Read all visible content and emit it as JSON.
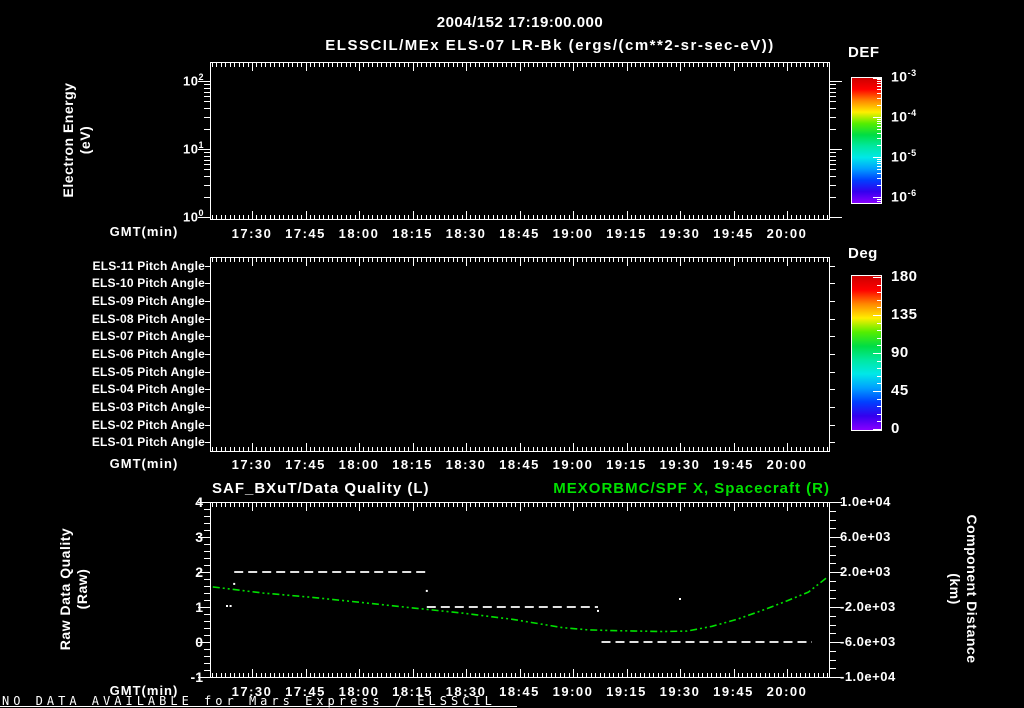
{
  "header": {
    "datetime_title": "2004/152 17:19:00.000",
    "instrument_title": "ELSSCIL/MEx ELS-07 LR-Bk  (ergs/(cm**2-sr-sec-eV))"
  },
  "colors": {
    "background": "#000000",
    "foreground": "#ffffff",
    "series_green": "#00e000",
    "rainbow": [
      "#cc0000",
      "#ff0000",
      "#ff8800",
      "#ffee00",
      "#55ee00",
      "#00dd44",
      "#00e8a0",
      "#00e8e8",
      "#00a0ff",
      "#0040ff",
      "#3300ee",
      "#8800ff"
    ]
  },
  "time_axis": {
    "label": "GMT(min)",
    "major_ticks": [
      "17:30",
      "17:45",
      "18:00",
      "18:15",
      "18:30",
      "18:45",
      "19:00",
      "19:15",
      "19:30",
      "19:45",
      "20:00"
    ],
    "start": "17:19",
    "end": "20:11"
  },
  "panel_energy": {
    "ylabel_line1": "Electron Energy",
    "ylabel_line2": "(eV)",
    "ytick_base": "10",
    "ytick_exponents": [
      "2",
      "1",
      "0"
    ],
    "colorbar": {
      "title": "DEF",
      "tick_base": "10",
      "tick_exponents": [
        "-3",
        "-4",
        "-5",
        "-6"
      ]
    }
  },
  "panel_pitch": {
    "row_labels": [
      "ELS-11 Pitch Angle",
      "ELS-10 Pitch Angle",
      "ELS-09 Pitch Angle",
      "ELS-08 Pitch Angle",
      "ELS-07 Pitch Angle",
      "ELS-06 Pitch Angle",
      "ELS-05 Pitch Angle",
      "ELS-04 Pitch Angle",
      "ELS-03 Pitch Angle",
      "ELS-02 Pitch Angle",
      "ELS-01 Pitch Angle"
    ],
    "colorbar": {
      "title": "Deg",
      "tick_labels": [
        "180",
        "135",
        "90",
        "45",
        "0"
      ]
    }
  },
  "panel_quality": {
    "title_left": "SAF_BXuT/Data Quality (L)",
    "title_right": "MEXORBMC/SPF X, Spacecraft (R)",
    "ylabel_left_line1": "Raw Data Quality",
    "ylabel_left_line2": "(Raw)",
    "ylabel_right_line1": "Component Distance",
    "ylabel_right_line2": "(km)",
    "yticks_left": [
      "4",
      "3",
      "2",
      "1",
      "0",
      "-1"
    ],
    "yticks_right": [
      "1.0e+04",
      "6.0e+03",
      "2.0e+03",
      "-2.0e+03",
      "-6.0e+03",
      "-1.0e+04"
    ]
  },
  "status_bar": {
    "text": "NO DATA AVAILABLE for Mars Express / ELSSCIL"
  },
  "chart_data": [
    {
      "type": "heatmap",
      "title": "ELSSCIL/MEx ELS-07 LR-Bk",
      "units": "ergs/(cm**2-sr-sec-eV)",
      "xlabel": "GMT(min)",
      "x_range": [
        "17:19",
        "20:11"
      ],
      "x_ticks": [
        "17:30",
        "17:45",
        "18:00",
        "18:15",
        "18:30",
        "18:45",
        "19:00",
        "19:15",
        "19:30",
        "19:45",
        "20:00"
      ],
      "ylabel": "Electron Energy (eV)",
      "y_scale": "log",
      "y_ticks": [
        1,
        10,
        100
      ],
      "colorbar": {
        "title": "DEF",
        "scale": "log",
        "ticks": [
          0.001,
          0.0001,
          1e-05,
          1e-06
        ]
      },
      "values": [],
      "note": "panel empty - no data plotted"
    },
    {
      "type": "heatmap",
      "xlabel": "GMT(min)",
      "x_range": [
        "17:19",
        "20:11"
      ],
      "x_ticks": [
        "17:30",
        "17:45",
        "18:00",
        "18:15",
        "18:30",
        "18:45",
        "19:00",
        "19:15",
        "19:30",
        "19:45",
        "20:00"
      ],
      "categories": [
        "ELS-11 Pitch Angle",
        "ELS-10 Pitch Angle",
        "ELS-09 Pitch Angle",
        "ELS-08 Pitch Angle",
        "ELS-07 Pitch Angle",
        "ELS-06 Pitch Angle",
        "ELS-05 Pitch Angle",
        "ELS-04 Pitch Angle",
        "ELS-03 Pitch Angle",
        "ELS-02 Pitch Angle",
        "ELS-01 Pitch Angle"
      ],
      "colorbar": {
        "title": "Deg",
        "ticks": [
          180,
          135,
          90,
          45,
          0
        ]
      },
      "values": [],
      "note": "panel empty - no data plotted"
    },
    {
      "type": "line",
      "xlabel": "GMT(min)",
      "x_range": [
        "17:19",
        "20:11"
      ],
      "x_ticks": [
        "17:30",
        "17:45",
        "18:00",
        "18:15",
        "18:30",
        "18:45",
        "19:00",
        "19:15",
        "19:30",
        "19:45",
        "20:00"
      ],
      "left_axis": {
        "label": "Raw Data Quality (Raw)",
        "ylim": [
          -1,
          4
        ],
        "ticks": [
          4,
          3,
          2,
          1,
          0,
          -1
        ]
      },
      "right_axis": {
        "label": "Component Distance (km)",
        "ylim": [
          -10000,
          10000
        ],
        "ticks": [
          10000,
          6000,
          2000,
          -2000,
          -6000,
          -10000
        ]
      },
      "series": [
        {
          "name": "SAF_BXuT/Data Quality (L)",
          "axis": "left",
          "color": "#ffffff",
          "line_style": "dashed",
          "type": "step_segments",
          "segments": [
            {
              "value": 2,
              "start": "17:25",
              "end": "18:19"
            },
            {
              "value": 1,
              "start": "18:19",
              "end": "19:07"
            },
            {
              "value": 0,
              "start": "19:08",
              "end": "20:07"
            }
          ]
        },
        {
          "name": "MEXORBMC/SPF X, Spacecraft (R)",
          "axis": "right",
          "color": "#00e000",
          "line_style": "dash-dot",
          "type": "curve",
          "points": [
            [
              "17:19",
              300
            ],
            [
              "17:33",
              -400
            ],
            [
              "17:47",
              -900
            ],
            [
              "18:01",
              -1500
            ],
            [
              "18:15",
              -2100
            ],
            [
              "18:29",
              -2700
            ],
            [
              "18:43",
              -3400
            ],
            [
              "18:57",
              -4350
            ],
            [
              "19:04",
              -4600
            ],
            [
              "19:11",
              -4700
            ],
            [
              "19:25",
              -4800
            ],
            [
              "19:32",
              -4750
            ],
            [
              "19:39",
              -4200
            ],
            [
              "19:46",
              -3400
            ],
            [
              "19:53",
              -2400
            ],
            [
              "20:00",
              -1300
            ],
            [
              "20:06",
              -300
            ],
            [
              "20:11",
              1300
            ]
          ]
        }
      ],
      "stray_marks": [
        {
          "t": "17:25",
          "value": 1.66,
          "axis": "left"
        },
        {
          "t": "17:23",
          "value": 1.03,
          "axis": "left"
        },
        {
          "t": "17:24",
          "value": 1.03,
          "axis": "left"
        },
        {
          "t": "18:19",
          "value": 1.46,
          "axis": "left"
        },
        {
          "t": "19:07",
          "value": 0.89,
          "axis": "left"
        },
        {
          "t": "19:30",
          "value": 1.23,
          "axis": "left"
        }
      ]
    }
  ]
}
